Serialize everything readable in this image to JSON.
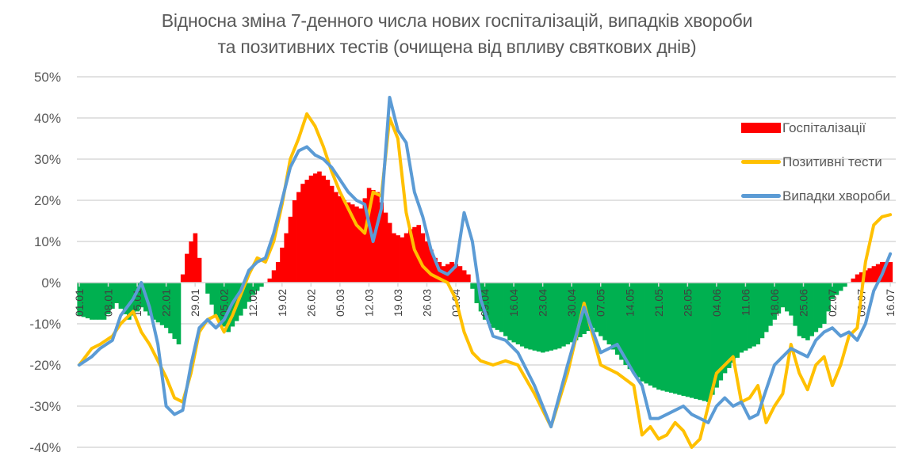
{
  "title": {
    "line1": "Відносна зміна 7-денного числа нових госпіталізацій, випадків хвороби",
    "line2": "та позитивних тестів (очищена від впливу святкових днів)"
  },
  "legend": {
    "items": [
      {
        "label": "Госпіталізації",
        "kind": "bar",
        "color": "#ff0000"
      },
      {
        "label": "Позитивні тести",
        "kind": "line",
        "color": "#ffc000"
      },
      {
        "label": "Випадки хвороби",
        "kind": "line",
        "color": "#5b9bd5"
      }
    ]
  },
  "colors": {
    "hosp_positive": "#ff0000",
    "hosp_negative": "#00b050",
    "tests": "#ffc000",
    "cases": "#5b9bd5",
    "grid": "#d9d9d9",
    "text": "#595959"
  },
  "chart_data": {
    "type": "bar+line",
    "title": "Відносна зміна 7-денного числа нових госпіталізацій, випадків хвороби та позитивних тестів (очищена від впливу святкових днів)",
    "xlabel": "",
    "ylabel": "",
    "ylim": [
      -0.4,
      0.5
    ],
    "yticks": [
      "50%",
      "40%",
      "30%",
      "20%",
      "10%",
      "0%",
      "-10%",
      "-20%",
      "-30%",
      "-40%"
    ],
    "grid": true,
    "legend_position": "right",
    "x_tick_labels": [
      "01.01",
      "08.01",
      "15.01",
      "22.01",
      "29.01",
      "05.02",
      "12.02",
      "19.02",
      "26.02",
      "05.03",
      "12.03",
      "19.03",
      "26.03",
      "02.04",
      "09.04",
      "16.04",
      "23.04",
      "30.04",
      "07.05",
      "14.05",
      "21.05",
      "28.05",
      "04.06",
      "11.06",
      "18.06",
      "25.06",
      "02.07",
      "09.07",
      "16.07"
    ],
    "x_days_per_tick": 7,
    "series": [
      {
        "name": "Госпіталізації",
        "type": "bar",
        "x_day": [
          0,
          3,
          6,
          9,
          12,
          15,
          18,
          21,
          24,
          25,
          26,
          27,
          28,
          30,
          33,
          36,
          39,
          42,
          44,
          46,
          48,
          50,
          52,
          54,
          56,
          58,
          60,
          62,
          64,
          66,
          68,
          70,
          72,
          74,
          76,
          78,
          80,
          82,
          84,
          86,
          88,
          90,
          92,
          94,
          96,
          98,
          100,
          102,
          104,
          106,
          108,
          112,
          116,
          120,
          124,
          128,
          132,
          136,
          140,
          144,
          148,
          152,
          156,
          160,
          164,
          166,
          168,
          170,
          172,
          174,
          176,
          178,
          180,
          182,
          184,
          186,
          188,
          190,
          192,
          194,
          196
        ],
        "values": [
          -0.08,
          -0.09,
          -0.09,
          -0.05,
          -0.09,
          -0.06,
          -0.09,
          -0.11,
          -0.15,
          0.02,
          0.07,
          0.1,
          0.12,
          0,
          -0.08,
          -0.12,
          -0.08,
          -0.03,
          -0.01,
          0.01,
          0.05,
          0.12,
          0.2,
          0.24,
          0.26,
          0.27,
          0.25,
          0.22,
          0.2,
          0.19,
          0.18,
          0.23,
          0.22,
          0.17,
          0.12,
          0.11,
          0.13,
          0.14,
          0.1,
          0.06,
          0.04,
          0.05,
          0.04,
          0.02,
          -0.05,
          -0.09,
          -0.11,
          -0.12,
          -0.14,
          -0.15,
          -0.16,
          -0.17,
          -0.16,
          -0.14,
          -0.11,
          -0.15,
          -0.2,
          -0.24,
          -0.26,
          -0.27,
          -0.28,
          -0.29,
          -0.22,
          -0.17,
          -0.15,
          -0.12,
          -0.09,
          -0.06,
          -0.08,
          -0.13,
          -0.14,
          -0.12,
          -0.1,
          -0.04,
          -0.02,
          0,
          0.02,
          0.03,
          0.04,
          0.05,
          0.05
        ]
      },
      {
        "name": "Позитивні тести",
        "type": "line",
        "x_day": [
          0,
          3,
          5,
          8,
          10,
          13,
          15,
          17,
          19,
          21,
          23,
          25,
          27,
          29,
          31,
          33,
          35,
          37,
          39,
          41,
          43,
          45,
          47,
          49,
          51,
          53,
          55,
          57,
          59,
          61,
          63,
          65,
          67,
          69,
          71,
          73,
          75,
          77,
          79,
          81,
          83,
          85,
          87,
          89,
          91,
          93,
          95,
          97,
          100,
          103,
          106,
          110,
          114,
          118,
          122,
          126,
          130,
          134,
          136,
          138,
          140,
          142,
          144,
          146,
          148,
          150,
          152,
          154,
          156,
          158,
          160,
          162,
          164,
          166,
          168,
          170,
          172,
          174,
          176,
          178,
          180,
          182,
          184,
          186,
          188,
          190,
          192,
          194,
          196
        ],
        "values": [
          -0.2,
          -0.16,
          -0.15,
          -0.13,
          -0.1,
          -0.07,
          -0.12,
          -0.15,
          -0.19,
          -0.23,
          -0.28,
          -0.29,
          -0.22,
          -0.12,
          -0.09,
          -0.08,
          -0.12,
          -0.08,
          -0.03,
          0.02,
          0.06,
          0.05,
          0.1,
          0.19,
          0.3,
          0.35,
          0.41,
          0.38,
          0.33,
          0.27,
          0.22,
          0.18,
          0.14,
          0.12,
          0.22,
          0.21,
          0.4,
          0.35,
          0.17,
          0.08,
          0.04,
          0.02,
          0.01,
          0.0,
          -0.04,
          -0.12,
          -0.17,
          -0.19,
          -0.2,
          -0.19,
          -0.2,
          -0.27,
          -0.35,
          -0.22,
          -0.05,
          -0.2,
          -0.22,
          -0.25,
          -0.37,
          -0.35,
          -0.38,
          -0.37,
          -0.34,
          -0.36,
          -0.4,
          -0.38,
          -0.3,
          -0.22,
          -0.2,
          -0.18,
          -0.29,
          -0.28,
          -0.25,
          -0.34,
          -0.3,
          -0.27,
          -0.15,
          -0.22,
          -0.26,
          -0.2,
          -0.18,
          -0.25,
          -0.2,
          -0.13,
          -0.11,
          0.05,
          0.14,
          0.16,
          0.165
        ]
      },
      {
        "name": "Випадки хвороби",
        "type": "line",
        "x_day": [
          0,
          3,
          5,
          8,
          10,
          13,
          15,
          17,
          19,
          21,
          23,
          25,
          27,
          29,
          31,
          33,
          35,
          37,
          39,
          41,
          43,
          45,
          47,
          49,
          51,
          53,
          55,
          57,
          59,
          61,
          63,
          65,
          67,
          69,
          71,
          73,
          75,
          77,
          79,
          81,
          83,
          85,
          87,
          89,
          91,
          93,
          95,
          97,
          100,
          103,
          106,
          110,
          114,
          118,
          122,
          126,
          130,
          134,
          136,
          138,
          140,
          142,
          144,
          146,
          148,
          150,
          152,
          154,
          156,
          158,
          160,
          162,
          164,
          166,
          168,
          170,
          172,
          174,
          176,
          178,
          180,
          182,
          184,
          186,
          188,
          190,
          192,
          194,
          196
        ],
        "values": [
          -0.2,
          -0.18,
          -0.16,
          -0.14,
          -0.08,
          -0.04,
          0.0,
          -0.06,
          -0.15,
          -0.3,
          -0.32,
          -0.31,
          -0.2,
          -0.11,
          -0.09,
          -0.11,
          -0.09,
          -0.05,
          -0.02,
          0.03,
          0.05,
          0.06,
          0.12,
          0.2,
          0.28,
          0.32,
          0.33,
          0.31,
          0.3,
          0.28,
          0.25,
          0.22,
          0.2,
          0.19,
          0.1,
          0.18,
          0.45,
          0.37,
          0.34,
          0.22,
          0.16,
          0.08,
          0.03,
          0.02,
          0.04,
          0.17,
          0.1,
          -0.04,
          -0.13,
          -0.14,
          -0.17,
          -0.25,
          -0.35,
          -0.2,
          -0.06,
          -0.17,
          -0.15,
          -0.22,
          -0.25,
          -0.33,
          -0.33,
          -0.32,
          -0.31,
          -0.3,
          -0.32,
          -0.33,
          -0.34,
          -0.3,
          -0.28,
          -0.3,
          -0.29,
          -0.33,
          -0.32,
          -0.26,
          -0.2,
          -0.18,
          -0.16,
          -0.17,
          -0.18,
          -0.14,
          -0.12,
          -0.11,
          -0.13,
          -0.12,
          -0.14,
          -0.1,
          -0.02,
          0.02,
          0.07
        ]
      }
    ]
  }
}
